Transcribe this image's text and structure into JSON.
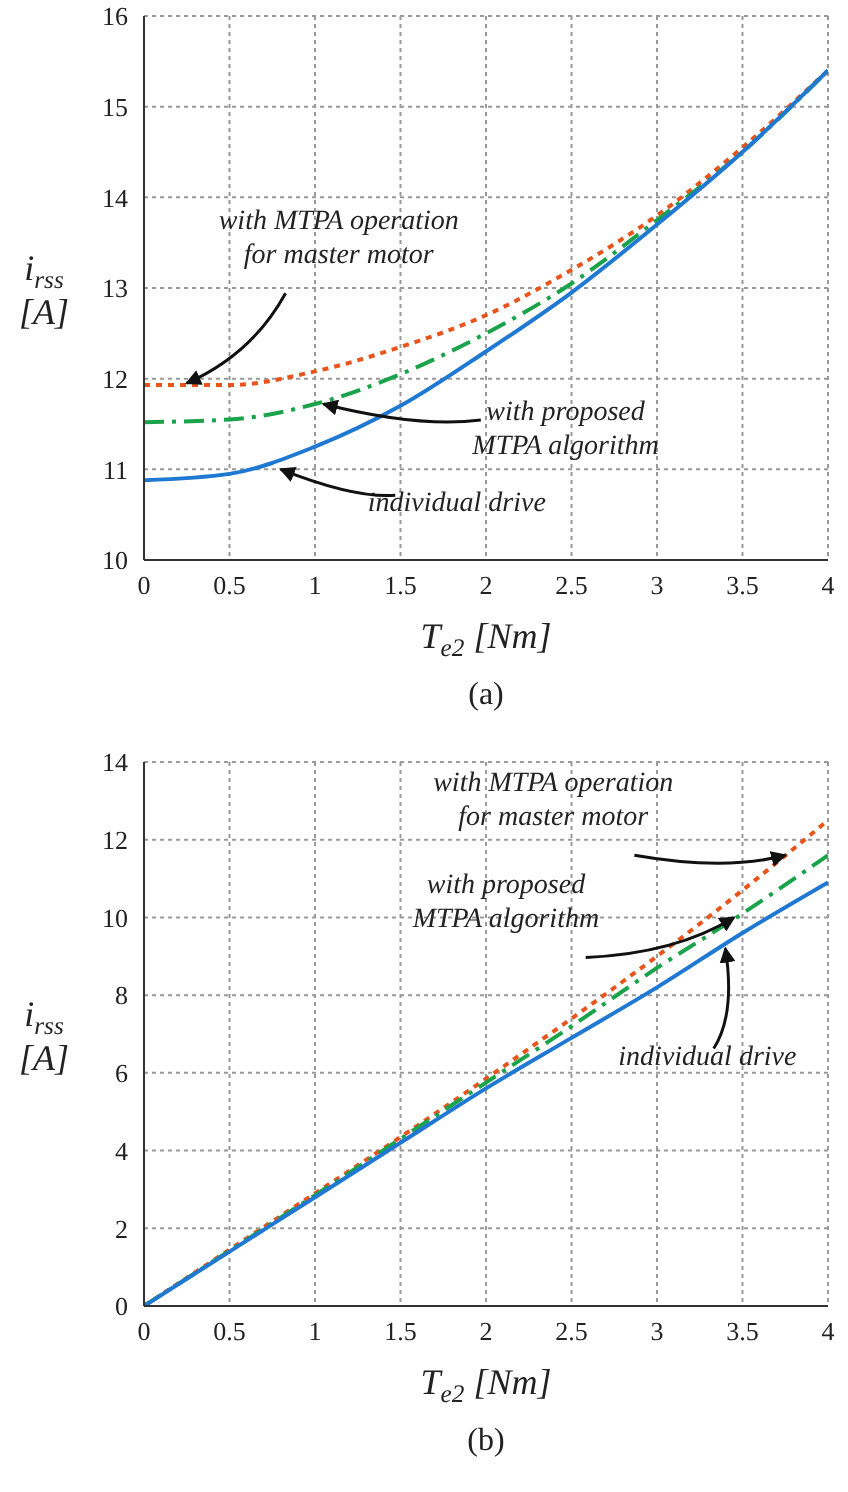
{
  "chart_data": [
    {
      "type": "line",
      "xlabel": "T$_{e2}$ [Nm]",
      "ylabel": "i$_{rss}$\n[A]",
      "xlim": [
        0,
        4
      ],
      "ylim": [
        10,
        16
      ],
      "xticks": [
        0,
        0.5,
        1,
        1.5,
        2,
        2.5,
        3,
        3.5,
        4
      ],
      "yticks": [
        10,
        11,
        12,
        13,
        14,
        15,
        16
      ],
      "grid": true,
      "marker": "none",
      "x": [
        0,
        0.5,
        1,
        1.5,
        2,
        2.5,
        3,
        3.5,
        4
      ],
      "series": [
        {
          "color": "#e8541c",
          "line_style": "dotted",
          "values": [
            11.93,
            11.93,
            12.08,
            12.35,
            12.7,
            13.2,
            13.8,
            14.55,
            15.4
          ]
        },
        {
          "color": "#1aa34a",
          "line_style": "dashed",
          "values": [
            11.52,
            11.55,
            11.72,
            12.05,
            12.5,
            13.05,
            13.75,
            14.5,
            15.4
          ]
        },
        {
          "color": "#1f78d1",
          "line_style": "solid",
          "values": [
            10.88,
            10.95,
            11.25,
            11.7,
            12.3,
            12.95,
            13.7,
            14.5,
            15.4
          ]
        }
      ],
      "annotations": [
        {
          "text": "with MTPA operation\nfor master motor",
          "x": 0.25,
          "y": 11.95
        },
        {
          "text": "with proposed\nMTPA algorithm",
          "x": 1.05,
          "y": 11.72
        },
        {
          "text": "individual drive",
          "x": 0.8,
          "y": 11.0
        },
        "(a)"
      ]
    },
    {
      "type": "line",
      "xlabel": "T$_{e2}$ [Nm]",
      "ylabel": "i$_{rss}$\n[A]",
      "xlim": [
        0,
        4
      ],
      "ylim": [
        0,
        14
      ],
      "xticks": [
        0,
        0.5,
        1,
        1.5,
        2,
        2.5,
        3,
        3.5,
        4
      ],
      "yticks": [
        0,
        2,
        4,
        6,
        8,
        10,
        12,
        14
      ],
      "grid": true,
      "marker": "none",
      "x": [
        0,
        0.5,
        1,
        1.5,
        2,
        2.5,
        3,
        3.5,
        4
      ],
      "series": [
        {
          "color": "#e8541c",
          "line_style": "dotted",
          "values": [
            0,
            1.45,
            2.9,
            4.35,
            5.85,
            7.4,
            9.0,
            10.7,
            12.5
          ]
        },
        {
          "color": "#1aa34a",
          "line_style": "dashed",
          "values": [
            0,
            1.42,
            2.85,
            4.3,
            5.75,
            7.2,
            8.7,
            10.1,
            11.6
          ]
        },
        {
          "color": "#1f78d1",
          "line_style": "solid",
          "values": [
            0,
            1.4,
            2.8,
            4.2,
            5.6,
            6.9,
            8.2,
            9.6,
            10.9
          ]
        }
      ],
      "annotations": [
        {
          "text": "with MTPA operation\nfor master motor",
          "x": 3.75,
          "y": 11.6
        },
        {
          "text": "with proposed\nMTPA algorithm",
          "x": 3.45,
          "y": 10.0
        },
        {
          "text": "individual drive",
          "x": 3.4,
          "y": 9.2
        },
        "(b)"
      ]
    }
  ]
}
